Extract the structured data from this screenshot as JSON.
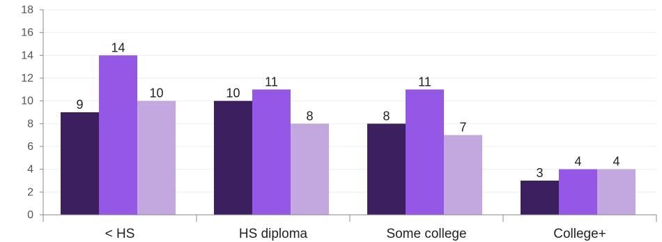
{
  "chart_data": {
    "type": "bar",
    "categories": [
      "< HS",
      "HS diploma",
      "Some college",
      "College+"
    ],
    "series": [
      {
        "values": [
          9,
          10,
          8,
          3
        ],
        "color": "#3b1f5e"
      },
      {
        "values": [
          14,
          11,
          11,
          4
        ],
        "color": "#9457e6"
      },
      {
        "values": [
          10,
          8,
          7,
          4
        ],
        "color": "#c3a8e0"
      }
    ],
    "ylim": [
      0,
      18
    ],
    "yticks": [
      0,
      2,
      4,
      6,
      8,
      10,
      12,
      14,
      16,
      18
    ],
    "grid": true,
    "legend": "none",
    "data_labels": true,
    "colors": {
      "grid": "#eeeeee",
      "axis": "#888888"
    }
  }
}
